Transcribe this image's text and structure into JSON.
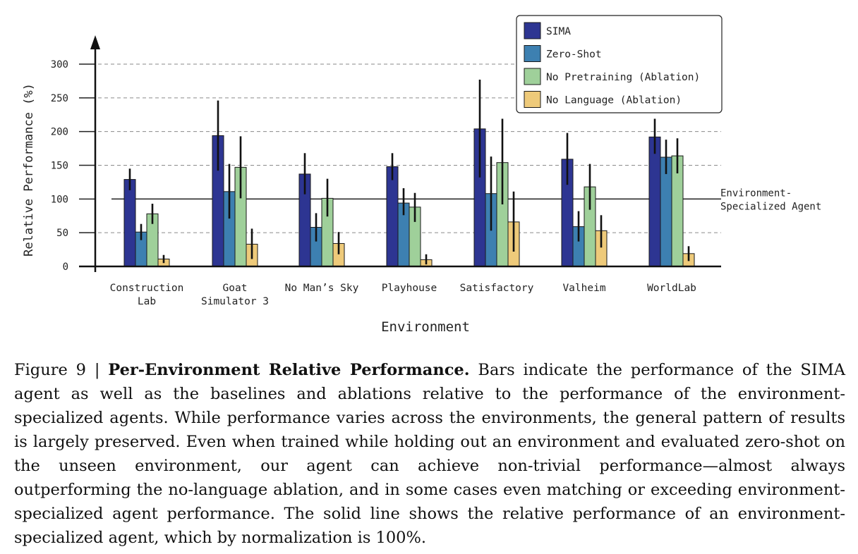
{
  "chart_data": {
    "type": "bar",
    "title": "",
    "xlabel": "Environment",
    "ylabel": "Relative Performance (%)",
    "ylim": [
      0,
      300
    ],
    "yticks": [
      0,
      50,
      100,
      150,
      200,
      250,
      300
    ],
    "grid": "dashed horizontal at y ticks",
    "legend_position": "top-right",
    "categories": [
      [
        "Construction",
        "Lab"
      ],
      [
        "Goat",
        "Simulator 3"
      ],
      [
        "No Man’s Sky"
      ],
      [
        "Playhouse"
      ],
      [
        "Satisfactory"
      ],
      [
        "Valheim"
      ],
      [
        "WorldLab"
      ]
    ],
    "series": [
      {
        "name": "SIMA",
        "color": "#2d3592",
        "values": [
          129,
          194,
          137,
          148,
          204,
          159,
          192
        ],
        "error": [
          [
            113,
            145
          ],
          [
            142,
            246
          ],
          [
            107,
            168
          ],
          [
            128,
            168
          ],
          [
            132,
            277
          ],
          [
            121,
            198
          ],
          [
            167,
            219
          ]
        ]
      },
      {
        "name": "Zero-Shot",
        "color": "#3d80b1",
        "values": [
          51,
          111,
          58,
          94,
          108,
          59,
          162
        ],
        "error": [
          [
            39,
            63
          ],
          [
            71,
            152
          ],
          [
            37,
            79
          ],
          [
            76,
            116
          ],
          [
            53,
            163
          ],
          [
            37,
            82
          ],
          [
            137,
            188
          ]
        ]
      },
      {
        "name": "No Pretraining (Ablation)",
        "color": "#9fd09a",
        "values": [
          78,
          147,
          101,
          88,
          154,
          118,
          164
        ],
        "error": [
          [
            63,
            93
          ],
          [
            101,
            193
          ],
          [
            74,
            130
          ],
          [
            66,
            109
          ],
          [
            92,
            219
          ],
          [
            84,
            152
          ],
          [
            138,
            190
          ]
        ]
      },
      {
        "name": "No Language (Ablation)",
        "color": "#eeca7a",
        "values": [
          11,
          33,
          34,
          10,
          66,
          53,
          19
        ],
        "error": [
          [
            5,
            17
          ],
          [
            11,
            56
          ],
          [
            18,
            51
          ],
          [
            3,
            18
          ],
          [
            22,
            111
          ],
          [
            28,
            76
          ],
          [
            8,
            30
          ]
        ]
      }
    ],
    "reference_line": {
      "value": 100,
      "label": [
        "Environment-",
        "Specialized Agent"
      ]
    }
  },
  "caption": {
    "prefix": "Figure 9 | ",
    "bold_title": "Per-Environment Relative Performance.",
    "body": " Bars indicate the performance of the SIMA agent as well as the baselines and ablations relative to the performance of the environment-specialized agents. While performance varies across the environments, the general pattern of results is largely preserved. Even when trained while holding out an environment and evaluated zero-shot on the unseen environment, our agent can achieve non-trivial performance—almost always outperforming the no-language ablation, and in some cases even matching or exceeding environment-specialized agent performance. The solid line shows the relative performance of an environment-specialized agent, which by normalization is 100%."
  }
}
